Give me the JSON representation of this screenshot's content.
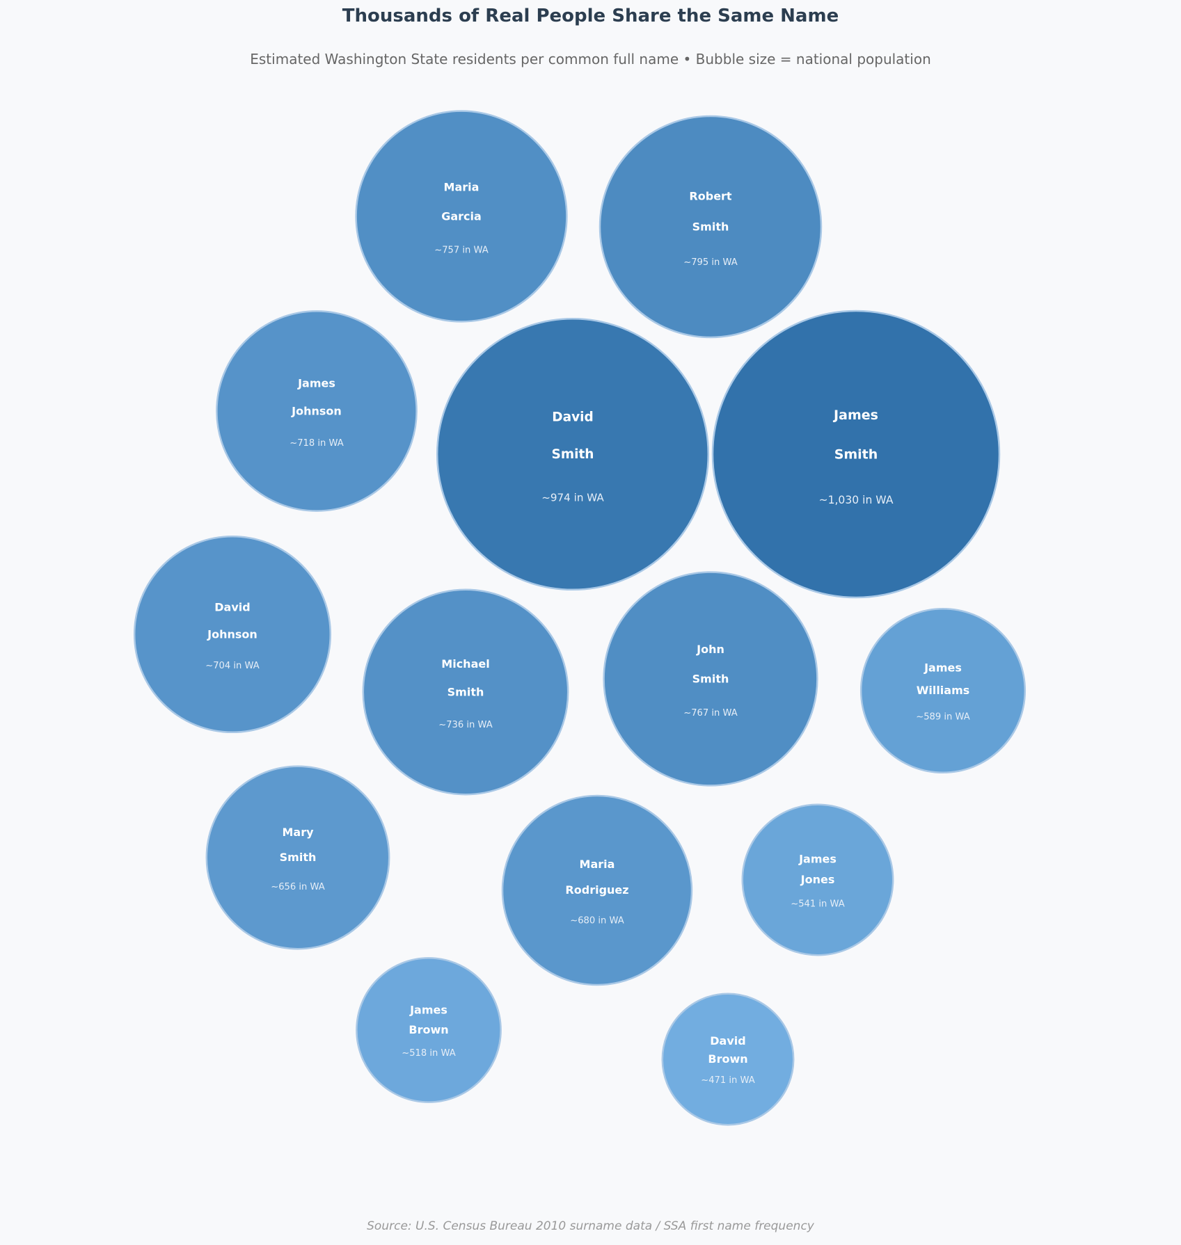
{
  "chart_data": {
    "type": "bubble",
    "title": "Thousands of Real People Share the Same Name",
    "subtitle": "Estimated Washington State residents per common full name  •  Bubble size = national population",
    "source": "Source: U.S. Census Bureau 2010 surname data / SSA first name frequency",
    "count_suffix": " in WA",
    "count_prefix": "~",
    "color_scale": {
      "low": "#72ade0",
      "high": "#3272ab"
    },
    "bubbles": [
      {
        "first": "James",
        "last": "Smith",
        "wa": 1030
      },
      {
        "first": "David",
        "last": "Smith",
        "wa": 974
      },
      {
        "first": "Robert",
        "last": "Smith",
        "wa": 795
      },
      {
        "first": "John",
        "last": "Smith",
        "wa": 767
      },
      {
        "first": "Maria",
        "last": "Garcia",
        "wa": 757
      },
      {
        "first": "Michael",
        "last": "Smith",
        "wa": 736
      },
      {
        "first": "James",
        "last": "Johnson",
        "wa": 718
      },
      {
        "first": "David",
        "last": "Johnson",
        "wa": 704
      },
      {
        "first": "Maria",
        "last": "Rodriguez",
        "wa": 680
      },
      {
        "first": "Mary",
        "last": "Smith",
        "wa": 656
      },
      {
        "first": "James",
        "last": "Williams",
        "wa": 589
      },
      {
        "first": "James",
        "last": "Jones",
        "wa": 541
      },
      {
        "first": "James",
        "last": "Brown",
        "wa": 518
      },
      {
        "first": "David",
        "last": "Brown",
        "wa": 471
      }
    ]
  }
}
